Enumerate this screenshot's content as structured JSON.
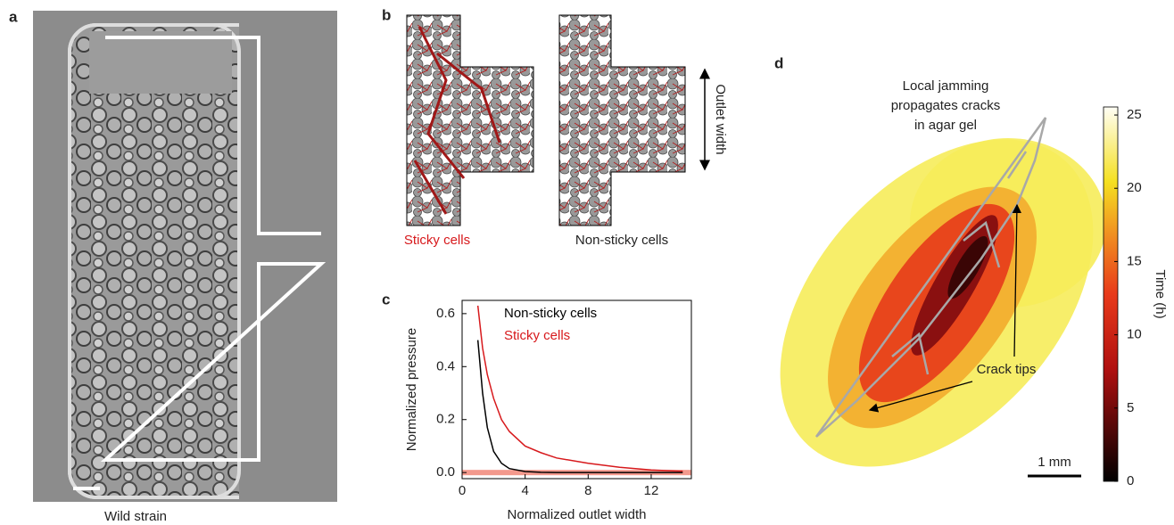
{
  "panels": {
    "a": {
      "label": "a",
      "caption": "Wild strain"
    },
    "b": {
      "label": "b",
      "left_caption": "Sticky cells",
      "right_caption": "Non-sticky cells",
      "dimension": "Outlet width"
    },
    "c": {
      "label": "c"
    },
    "d": {
      "label": "d",
      "title": [
        "Local jamming",
        "propagates cracks",
        "in agar gel"
      ],
      "annotation": "Crack tips",
      "scale_bar": "1 mm"
    }
  },
  "chart_data": [
    {
      "type": "line",
      "xlabel": "Normalized outlet width",
      "ylabel": "Normalized pressure",
      "x": [
        1,
        1.3,
        1.6,
        2,
        2.5,
        3,
        4,
        5,
        6,
        8,
        10,
        12,
        14
      ],
      "series": [
        {
          "name": "Non-sticky cells",
          "color": "#000000",
          "values": [
            0.5,
            0.3,
            0.17,
            0.08,
            0.035,
            0.015,
            0.004,
            0.001,
            0,
            0,
            0,
            0,
            0
          ]
        },
        {
          "name": "Sticky cells",
          "color": "#d7191c",
          "values": [
            0.63,
            0.47,
            0.37,
            0.28,
            0.2,
            0.155,
            0.1,
            0.075,
            0.055,
            0.035,
            0.02,
            0.01,
            0.005
          ]
        }
      ],
      "xlim": [
        0,
        14.55
      ],
      "ylim": [
        -0.023,
        0.65
      ],
      "xticks": [
        0,
        4,
        8,
        12
      ],
      "yticks": [
        {
          "value": 0,
          "label": "0.0"
        },
        0.2,
        0.4,
        0.6
      ]
    },
    {
      "type": "colorbar",
      "ylabel": "Time (h)",
      "ylim": [
        0,
        25.55
      ],
      "yticks": [
        0,
        5,
        10,
        15,
        20,
        25
      ]
    }
  ]
}
